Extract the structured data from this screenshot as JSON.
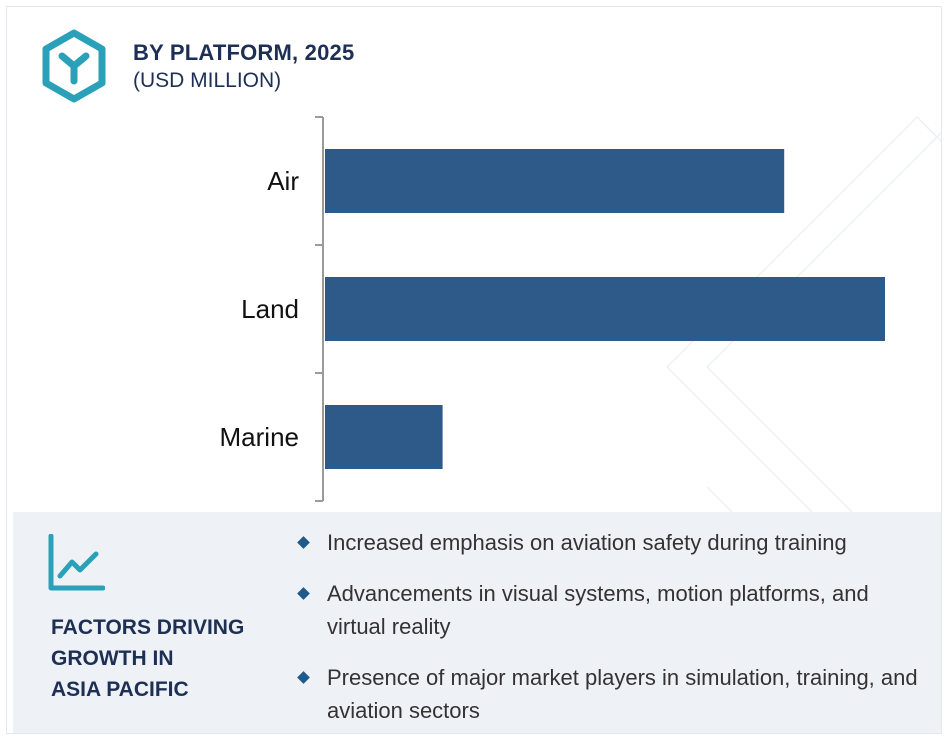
{
  "header": {
    "title": "BY PLATFORM, 2025",
    "subtitle": "(USD MILLION)"
  },
  "chart_data": {
    "type": "bar",
    "orientation": "horizontal",
    "categories": [
      "Air",
      "Land",
      "Marine"
    ],
    "values": [
      82,
      100,
      21
    ],
    "bar_color": "#2e5a8a",
    "grid": false,
    "value_labels": false
  },
  "factors": {
    "title_lines": [
      "FACTORS DRIVING",
      "GROWTH IN",
      "ASIA PACIFIC"
    ],
    "bullets": [
      "Increased emphasis on aviation safety during training",
      "Advancements in visual systems, motion platforms, and virtual reality",
      "Presence of major market players in simulation, training, and aviation sectors"
    ]
  },
  "colors": {
    "accent": "#2aa1b8",
    "title_text": "#1d3054",
    "panel_bg": "#eef1f6"
  },
  "icons": {
    "header": "hexagon-y-logo-icon",
    "factors": "trend-line-chart-icon",
    "bullet": "diamond-bullet-icon"
  }
}
